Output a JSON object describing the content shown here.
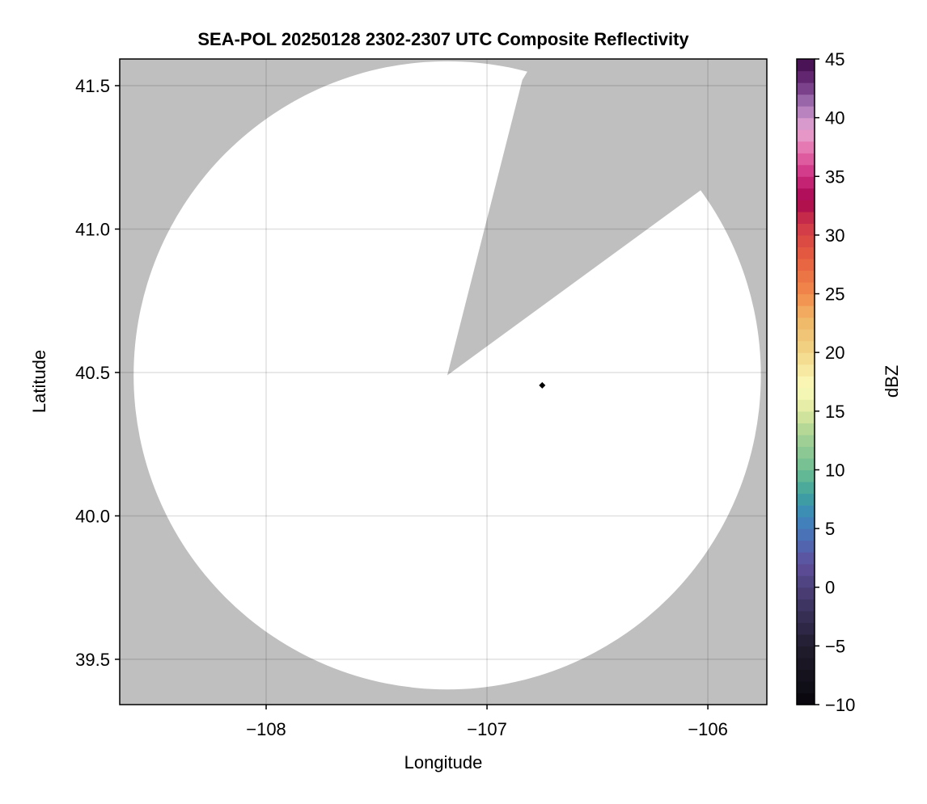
{
  "chart_data": {
    "type": "heatmap",
    "title": "SEA-POL 20250128 2302-2307 UTC Composite Reflectivity",
    "xlabel": "Longitude",
    "ylabel": "Latitude",
    "xlim": [
      -108.663,
      -105.733
    ],
    "ylim": [
      39.342,
      41.593
    ],
    "xticks": [
      -108,
      -107,
      -106
    ],
    "xtick_labels": [
      "−108",
      "−107",
      "−106"
    ],
    "yticks": [
      39.5,
      40.0,
      40.5,
      41.0,
      41.5
    ],
    "ytick_labels": [
      "39.5",
      "40.0",
      "40.5",
      "41.0",
      "41.5"
    ],
    "grid": true,
    "background_color": "#bfbfbf",
    "no_echo_color": "#ffffff",
    "radar_coverage": {
      "center": [
        -107.18,
        40.49
      ],
      "radius_lon": 1.42,
      "radius_lat": 1.095
    },
    "blocked_sector": {
      "edge_points": [
        [
          -106.84,
          41.52
        ],
        [
          -106.06,
          41.12
        ]
      ]
    },
    "marker": {
      "lon": -106.75,
      "lat": 40.455,
      "shape": "diamond",
      "color": "#000000"
    },
    "colorbar": {
      "label": "dBZ",
      "range": [
        -10,
        45
      ],
      "bins": 55,
      "ticks": [
        -10,
        -5,
        0,
        5,
        10,
        15,
        20,
        25,
        30,
        35,
        40,
        45
      ],
      "tick_labels": [
        "−10",
        "−5",
        "0",
        "5",
        "10",
        "15",
        "20",
        "25",
        "30",
        "35",
        "40",
        "45"
      ],
      "anchors": [
        [
          -10,
          "#08070c"
        ],
        [
          -5,
          "#221d2e"
        ],
        [
          -1,
          "#43386a"
        ],
        [
          2,
          "#5e4f9c"
        ],
        [
          4,
          "#4f6bb5"
        ],
        [
          6,
          "#3c87bd"
        ],
        [
          8,
          "#3fa39c"
        ],
        [
          10,
          "#6dbd92"
        ],
        [
          13,
          "#a9d394"
        ],
        [
          15,
          "#dde8a0"
        ],
        [
          17,
          "#fbfbba"
        ],
        [
          20,
          "#f2d688"
        ],
        [
          23,
          "#f0b465"
        ],
        [
          25,
          "#f28a4c"
        ],
        [
          28,
          "#e65f3f"
        ],
        [
          31,
          "#cf3648"
        ],
        [
          33,
          "#a7054e"
        ],
        [
          35,
          "#cd2d80"
        ],
        [
          37,
          "#e26aa8"
        ],
        [
          39,
          "#e8a4d2"
        ],
        [
          41,
          "#a978b9"
        ],
        [
          43,
          "#6d2f7c"
        ],
        [
          45,
          "#3e0a48"
        ]
      ]
    }
  }
}
